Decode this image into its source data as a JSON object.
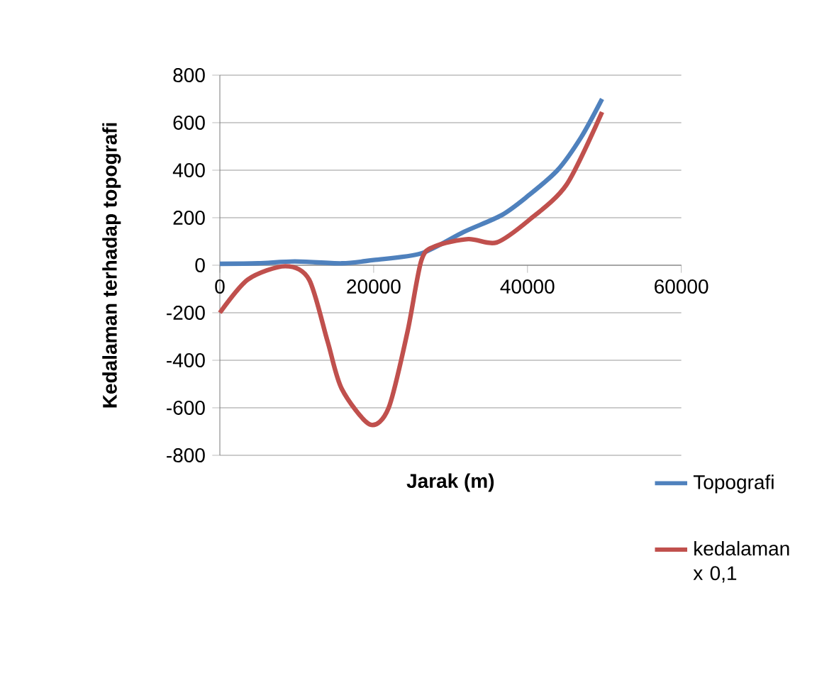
{
  "chart_data": {
    "type": "line",
    "xlabel": "Jarak (m)",
    "ylabel": "Kedalaman terhadap topografi",
    "xlim": [
      0,
      60000
    ],
    "xticks": [
      0,
      20000,
      40000,
      60000
    ],
    "ylim": [
      -800,
      800
    ],
    "yticks": [
      -800,
      -600,
      -400,
      -200,
      0,
      200,
      400,
      600,
      800
    ],
    "grid": "y",
    "legend": "bottom right",
    "line_style": "solid",
    "marker": "none",
    "series": [
      {
        "name": "Topografi",
        "color": "#4f81bd",
        "x": [
          0,
          5000,
          9750,
          15850,
          20000,
          26200,
          31700,
          36600,
          40000,
          43900,
          47000,
          49700
        ],
        "values": [
          6,
          8,
          16,
          8,
          22,
          50,
          140,
          210,
          290,
          400,
          540,
          700
        ]
      },
      {
        "name": "kedalaman x 0,1",
        "color": "#c0504d",
        "x": [
          0,
          3650,
          8500,
          11600,
          14000,
          15850,
          19500,
          21950,
          24400,
          26200,
          28000,
          32300,
          36000,
          40200,
          45100,
          49700
        ],
        "values": [
          -200,
          -60,
          -4,
          -60,
          -320,
          -520,
          -670,
          -600,
          -280,
          20,
          80,
          110,
          96,
          190,
          340,
          645
        ]
      }
    ]
  }
}
